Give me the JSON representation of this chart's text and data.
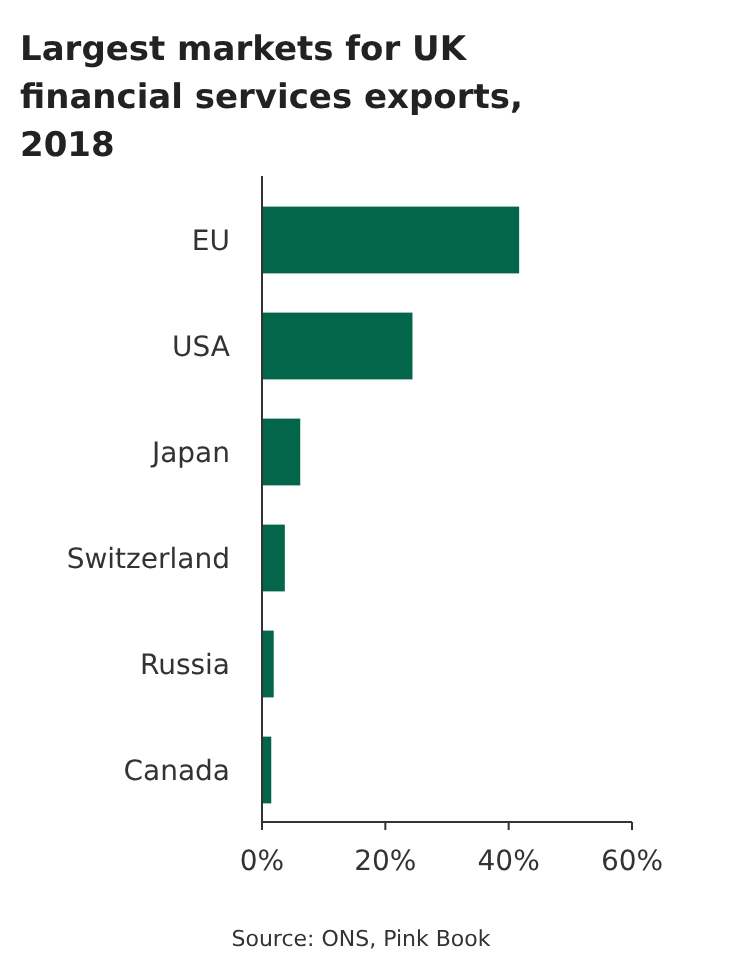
{
  "chart_data": {
    "type": "bar",
    "orientation": "horizontal",
    "title": "Largest markets for UK financial services exports, 2018",
    "categories": [
      "EU",
      "USA",
      "Japan",
      "Switzerland",
      "Russia",
      "Canada"
    ],
    "values": [
      41.7,
      24.4,
      6.2,
      3.7,
      1.9,
      1.5
    ],
    "color": "#03664a",
    "xlim": [
      0,
      60
    ],
    "xticks": [
      {
        "value": 0,
        "label": "0%"
      },
      {
        "value": 20,
        "label": "20%"
      },
      {
        "value": 40,
        "label": "40%"
      },
      {
        "value": 60,
        "label": "60%"
      }
    ],
    "grid": false,
    "annotations": [
      "Source: ONS, Pink Book"
    ]
  }
}
